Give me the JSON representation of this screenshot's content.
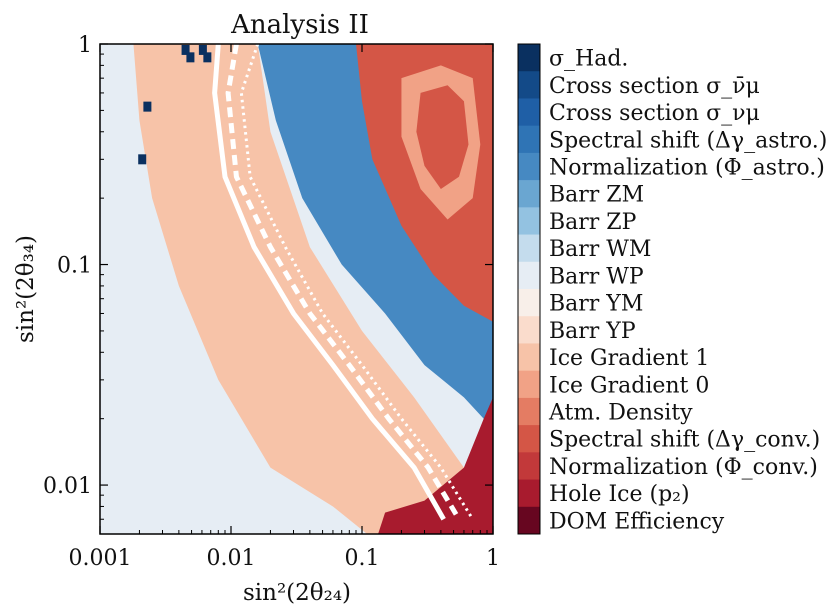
{
  "chart_data": {
    "type": "heatmap",
    "title": "Analysis II",
    "xlabel": "sin²(2θ₂₄)",
    "ylabel": "sin²(2θ₃₄)",
    "xscale": "log",
    "yscale": "log",
    "xlim": [
      0.001,
      1
    ],
    "ylim": [
      0.006,
      1
    ],
    "xticks": [
      {
        "value": 0.001,
        "label": "0.001"
      },
      {
        "value": 0.01,
        "label": "0.01"
      },
      {
        "value": 0.1,
        "label": "0.1"
      },
      {
        "value": 1,
        "label": "1"
      }
    ],
    "yticks": [
      {
        "value": 0.01,
        "label": "0.01"
      },
      {
        "value": 0.1,
        "label": "0.1"
      },
      {
        "value": 1,
        "label": "1"
      }
    ],
    "legend_position": "right",
    "categories": [
      {
        "label": "σ_Had.",
        "color": "#0a3060"
      },
      {
        "label": "Cross section σ_ν̄μ",
        "color": "#134a88"
      },
      {
        "label": "Cross section σ_νμ",
        "color": "#1f5fa6"
      },
      {
        "label": "Spectral shift (Δγ_astro.)",
        "color": "#2f74b5"
      },
      {
        "label": "Normalization (Φ_astro.)",
        "color": "#4689c2"
      },
      {
        "label": "Barr ZM",
        "color": "#6aa6d1"
      },
      {
        "label": "Barr ZP",
        "color": "#93c2e1"
      },
      {
        "label": "Barr WM",
        "color": "#c4dced"
      },
      {
        "label": "Barr WP",
        "color": "#e6edf4"
      },
      {
        "label": "Barr YM",
        "color": "#f8efe9"
      },
      {
        "label": "Barr YP",
        "color": "#fadccc"
      },
      {
        "label": "Ice Gradient 1",
        "color": "#f7c3a8"
      },
      {
        "label": "Ice Gradient 0",
        "color": "#f1a286"
      },
      {
        "label": "Atm. Density",
        "color": "#e47c63"
      },
      {
        "label": "Spectral shift (Δγ_conv.)",
        "color": "#d45646"
      },
      {
        "label": "Normalization (Φ_conv.)",
        "color": "#c2393a"
      },
      {
        "label": "Hole Ice (p₂)",
        "color": "#a81b2e"
      },
      {
        "label": "DOM Efficiency",
        "color": "#670620"
      }
    ],
    "regions": [
      {
        "category": "Barr WP",
        "description": "background, low sin²(2θ24)"
      },
      {
        "category": "Ice Gradient 1",
        "description": "diagonal band"
      },
      {
        "category": "Normalization (Φ_astro.)",
        "description": "upper-right band"
      },
      {
        "category": "Spectral shift (Δγ_conv.)",
        "description": "upper-right corner"
      },
      {
        "category": "Ice Gradient 0",
        "description": "contour ring inside upper-right corner"
      },
      {
        "category": "Hole Ice (p₂)",
        "description": "lower-right corner"
      },
      {
        "category": "σ_Had.",
        "description": "scattered cells near top"
      }
    ],
    "contours": [
      {
        "style": "solid",
        "color": "#ffffff",
        "x_vs_y": [
          [
            0.008,
            1.0
          ],
          [
            0.0075,
            0.6
          ],
          [
            0.009,
            0.25
          ],
          [
            0.015,
            0.12
          ],
          [
            0.03,
            0.06
          ],
          [
            0.06,
            0.035
          ],
          [
            0.12,
            0.02
          ],
          [
            0.25,
            0.012
          ],
          [
            0.42,
            0.007
          ]
        ]
      },
      {
        "style": "dashed",
        "color": "#ffffff",
        "x_vs_y": [
          [
            0.011,
            1.0
          ],
          [
            0.0095,
            0.6
          ],
          [
            0.011,
            0.25
          ],
          [
            0.02,
            0.12
          ],
          [
            0.04,
            0.06
          ],
          [
            0.08,
            0.035
          ],
          [
            0.16,
            0.02
          ],
          [
            0.32,
            0.012
          ],
          [
            0.55,
            0.007
          ]
        ]
      },
      {
        "style": "dotted",
        "color": "#ffffff",
        "x_vs_y": [
          [
            0.016,
            1.0
          ],
          [
            0.012,
            0.6
          ],
          [
            0.014,
            0.25
          ],
          [
            0.026,
            0.12
          ],
          [
            0.05,
            0.06
          ],
          [
            0.1,
            0.035
          ],
          [
            0.2,
            0.02
          ],
          [
            0.4,
            0.012
          ],
          [
            0.7,
            0.007
          ]
        ]
      }
    ]
  }
}
